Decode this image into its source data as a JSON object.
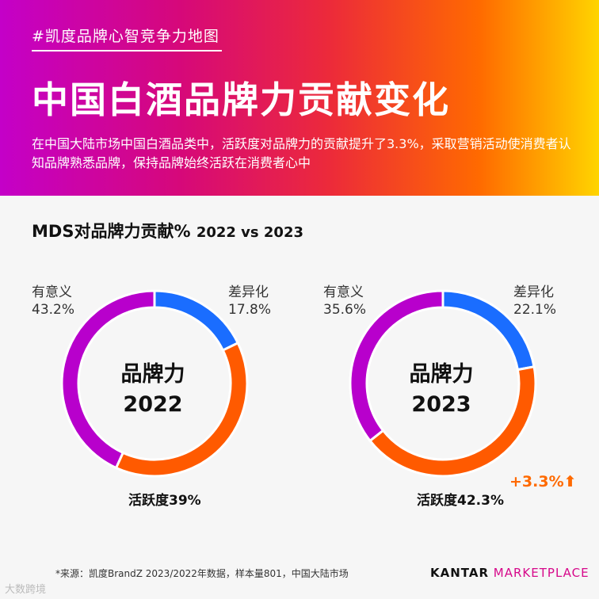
{
  "header": {
    "tag": "#凯度品牌心智竞争力地图",
    "title": "中国白酒品牌力贡献变化",
    "subtitle": "在中国大陆市场中国白酒品类中，活跃度对品牌力的贡献提升了3.3%，采取营销活动使消费者认知品牌熟悉品牌，保持品牌始终活跃在消费者心中"
  },
  "section": {
    "title": "MDS对品牌力贡献%",
    "subtitle": "2022 vs 2023"
  },
  "chart_data": [
    {
      "type": "pie",
      "center_label": [
        "品牌力",
        "2022"
      ],
      "slices": [
        {
          "name": "差异化",
          "value": 17.8,
          "label": "17.8%",
          "color": "#1a6dff"
        },
        {
          "name": "活跃度",
          "value": 39.0,
          "label": "39%",
          "color": "#ff5a00"
        },
        {
          "name": "有意义",
          "value": 43.2,
          "label": "43.2%",
          "color": "#b800cc"
        }
      ]
    },
    {
      "type": "pie",
      "center_label": [
        "品牌力",
        "2023"
      ],
      "slices": [
        {
          "name": "差异化",
          "value": 22.1,
          "label": "22.1%",
          "color": "#1a6dff"
        },
        {
          "name": "活跃度",
          "value": 42.3,
          "label": "42.3%",
          "color": "#ff5a00"
        },
        {
          "name": "有意义",
          "value": 35.6,
          "label": "35.6%",
          "color": "#b800cc"
        }
      ],
      "annotation": "+3.3%⬆"
    }
  ],
  "footer": {
    "source": "*来源：凯度BrandZ 2023/2022年数据，样本量801，中国大陆市场",
    "brand_primary": "KANTAR",
    "brand_secondary": "MARKETPLACE",
    "watermark": "大数跨境"
  }
}
